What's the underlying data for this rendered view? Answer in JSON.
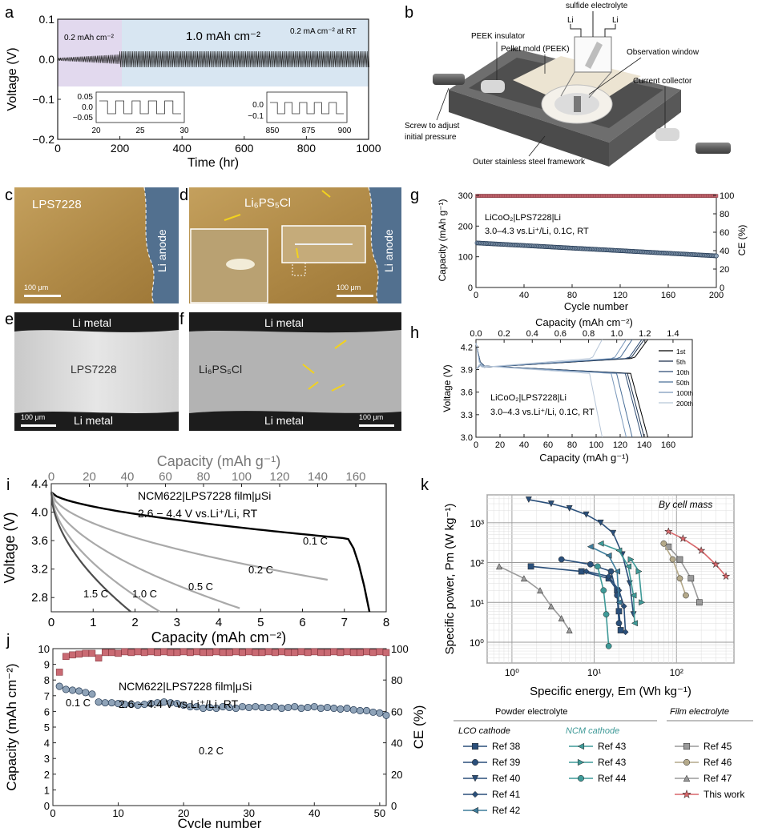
{
  "panel_letters": [
    "a",
    "b",
    "c",
    "d",
    "e",
    "f",
    "g",
    "h",
    "i",
    "j",
    "k"
  ],
  "colors": {
    "axis": "#222222",
    "accent_blue": "#1f4e79",
    "ce_pink": "#c96a73",
    "cap_grey": "#8fa3b8",
    "steel": "#6e6e6e",
    "peek": "#ede5d4"
  },
  "panel_a": {
    "region_labels": [
      "0.2 mAh cm⁻²",
      "1.0 mAh cm⁻²",
      "0.2 mA cm⁻² at RT"
    ],
    "inset1": {
      "yticks": [
        "0.05",
        "0.0",
        "−0.05"
      ],
      "xticks": [
        "20",
        "25",
        "30"
      ]
    },
    "inset2": {
      "yticks": [
        "0.0",
        "−0.1"
      ],
      "xticks": [
        "850",
        "875",
        "900"
      ]
    }
  },
  "panel_b": {
    "labels": [
      "sulfide electrolyte",
      "Li",
      "Li",
      "PEEK insulator",
      "Pellet mold (PEEK)",
      "Observation window",
      "Current collector",
      "Screw to adjust",
      "initial pressure",
      "Outer stainless steel framework"
    ]
  },
  "micro": {
    "c": {
      "title": "LPS7228",
      "anode": "Li anode",
      "scale": "100 μm"
    },
    "d": {
      "title": "Li₆PS₅Cl",
      "anode": "Li anode",
      "scale": "100 μm"
    },
    "e": {
      "top": "Li metal",
      "mid": "LPS7228",
      "bottom": "Li metal",
      "scale": "100 μm"
    },
    "f": {
      "top": "Li metal",
      "mid": "Li₆PS₅Cl",
      "bottom": "Li metal",
      "scale": "100 μm"
    }
  },
  "chart_data": [
    {
      "id": "a",
      "type": "line",
      "xlabel": "Time (hr)",
      "ylabel": "Voltage (V)",
      "xlim": [
        0,
        1000
      ],
      "ylim": [
        -0.2,
        0.1
      ],
      "xticks": [
        0,
        200,
        400,
        600,
        800,
        1000
      ],
      "yticks": [
        -0.2,
        -0.1,
        0.0,
        0.1
      ],
      "xtick_labels": [
        "0",
        "200",
        "400",
        "600",
        "800",
        "1000"
      ],
      "ytick_labels": [
        "−0.2",
        "−0.1",
        "0.0",
        "0.1"
      ],
      "amplitude_start": 0.012,
      "amplitude_end": 0.02,
      "switch_time": 200
    },
    {
      "id": "g",
      "type": "scatter",
      "xlabel": "Cycle number",
      "ylabel": "Capacity (mAh g⁻¹)",
      "y2label": "CE (%)",
      "annotations": [
        "LiCoO₂|LPS7228|Li",
        "3.0–4.3 vs.Li⁺/Li, 0.1C, RT"
      ],
      "xlim": [
        0,
        200
      ],
      "ylim": [
        0,
        300
      ],
      "y2lim": [
        0,
        100
      ],
      "xticks": [
        0,
        40,
        80,
        120,
        160,
        200
      ],
      "yticks": [
        0,
        100,
        200,
        300
      ],
      "y2ticks": [
        0,
        20,
        40,
        60,
        80,
        100
      ],
      "capacity_start": 145,
      "capacity_end": 103,
      "ce_level": 99.5
    },
    {
      "id": "h",
      "type": "line",
      "xlabel": "Capacity (mAh g⁻¹)",
      "x2label": "Capacity (mAh cm⁻²)",
      "ylabel": "Voltage (V)",
      "annotations": [
        "LiCoO₂|LPS7228|Li",
        "3.0–4.3 vs.Li⁺/Li, 0.1C, RT"
      ],
      "xlim": [
        0,
        180
      ],
      "ylim": [
        3.0,
        4.3
      ],
      "xticks": [
        0,
        20,
        40,
        60,
        80,
        100,
        120,
        140,
        160
      ],
      "yticks": [
        3.0,
        3.3,
        3.6,
        3.9,
        4.2
      ],
      "x2ticks": [
        "0.0",
        "0.2",
        "0.4",
        "0.6",
        "0.8",
        "1.0",
        "1.2",
        "1.4"
      ],
      "series": [
        {
          "name": "1st",
          "capacity": 143,
          "color": "#000000"
        },
        {
          "name": "5th",
          "capacity": 140,
          "color": "#1b2f4a"
        },
        {
          "name": "10th",
          "capacity": 138,
          "color": "#2c4b73"
        },
        {
          "name": "50th",
          "capacity": 130,
          "color": "#4a6f99"
        },
        {
          "name": "100th",
          "capacity": 125,
          "color": "#7a98bb"
        },
        {
          "name": "200th",
          "capacity": 105,
          "color": "#b7c6d8"
        }
      ]
    },
    {
      "id": "i",
      "type": "line",
      "xlabel": "Capacity (mAh cm⁻²)",
      "x2label": "Capacity (mAh g⁻¹)",
      "ylabel": "Voltage (V)",
      "annotations": [
        "NCM622|LPS7228 film|μSi",
        "2.6 − 4.4 V vs.Li⁺/Li, RT"
      ],
      "xlim": [
        0,
        8
      ],
      "ylim": [
        2.6,
        4.4
      ],
      "xticks": [
        0,
        1,
        2,
        3,
        4,
        5,
        6,
        7,
        8
      ],
      "yticks": [
        2.8,
        3.2,
        3.6,
        4.0,
        4.4
      ],
      "x2ticks": [
        0,
        20,
        40,
        60,
        80,
        100,
        120,
        140,
        160
      ],
      "series": [
        {
          "name": "0.1 C",
          "capacity": 7.6,
          "end_v": 3.55,
          "color": "#000000"
        },
        {
          "name": "0.2 C",
          "capacity": 6.6,
          "end_v": 3.05,
          "color": "#a9a9a9"
        },
        {
          "name": "0.5 C",
          "capacity": 4.5,
          "end_v": 2.65,
          "color": "#a9a9a9"
        },
        {
          "name": "1.0 C",
          "capacity": 2.6,
          "end_v": 2.6,
          "color": "#a9a9a9"
        },
        {
          "name": "1.5 C",
          "capacity": 1.9,
          "end_v": 2.6,
          "color": "#4d4d4d"
        }
      ]
    },
    {
      "id": "j",
      "type": "scatter",
      "xlabel": "Cycle number",
      "ylabel": "Capacity (mAh cm⁻²)",
      "y2label": "CE (%)",
      "annotations": [
        "NCM622|LPS7228 film|μSi",
        "2.6 − 4.4 V vs.Li⁺/Li, RT",
        "0.1 C",
        "0.2 C"
      ],
      "xlim": [
        0,
        51
      ],
      "ylim": [
        0,
        10
      ],
      "y2lim": [
        0,
        100
      ],
      "xticks": [
        0,
        10,
        20,
        30,
        40,
        50
      ],
      "yticks": [
        0,
        1,
        2,
        3,
        4,
        5,
        6,
        7,
        8,
        9,
        10
      ],
      "y2ticks": [
        0,
        20,
        40,
        60,
        80,
        100
      ],
      "capacity": [
        7.6,
        7.4,
        7.35,
        7.3,
        7.2,
        7.1,
        6.6,
        6.55,
        6.55,
        6.5,
        6.45,
        6.45,
        6.4,
        6.45,
        6.5,
        6.55,
        6.6,
        6.55,
        6.5,
        6.4,
        6.3,
        6.3,
        6.2,
        6.25,
        6.2,
        6.3,
        6.25,
        6.2,
        6.3,
        6.25,
        6.3,
        6.25,
        6.25,
        6.3,
        6.2,
        6.25,
        6.3,
        6.2,
        6.25,
        6.3,
        6.2,
        6.25,
        6.2,
        6.15,
        6.2,
        6.1,
        6.05,
        6.05,
        5.95,
        5.9,
        5.75
      ],
      "ce": [
        85,
        95,
        96,
        96.5,
        97,
        97,
        94,
        97.5,
        97.5,
        97,
        98,
        97.5,
        98,
        97.5,
        98,
        97.5,
        98,
        97.5,
        97.5,
        98,
        97.5,
        98,
        97.5,
        97.5,
        98,
        97.5,
        97.5,
        98,
        97.5,
        98,
        97.5,
        97.5,
        98,
        97.5,
        98,
        97.5,
        97.5,
        98,
        97.5,
        98,
        97.5,
        97.5,
        98,
        97.5,
        98,
        97.5,
        97.5,
        98,
        97.5,
        98,
        97.5
      ]
    },
    {
      "id": "k",
      "type": "scatter",
      "xlabel": "Specific energy, Em (Wh kg⁻¹)",
      "ylabel": "Specific power, Pm (W kg⁻¹)",
      "annotations": [
        "By cell mass"
      ],
      "xscale": "log",
      "yscale": "log",
      "xlim": [
        0.5,
        500
      ],
      "ylim": [
        0.3,
        5000
      ],
      "xtick_labels": [
        "10⁰",
        "10¹",
        "10²"
      ],
      "ytick_labels": [
        "10⁰",
        "10¹",
        "10²",
        "10³"
      ],
      "legend_groups": [
        "Powder electrolyte",
        "Film electrolyte",
        "LCO cathode",
        "NCM cathode"
      ],
      "series": [
        {
          "name": "Ref 38",
          "color": "#2a4f7a",
          "marker": "square",
          "points": [
            [
              1.7,
              80
            ],
            [
              7,
              60
            ],
            [
              15,
              40
            ],
            [
              19,
              20
            ],
            [
              20,
              6
            ],
            [
              21,
              2
            ]
          ]
        },
        {
          "name": "Ref 39",
          "color": "#2a4f7a",
          "marker": "circle",
          "points": [
            [
              4,
              120
            ],
            [
              9,
              90
            ],
            [
              16,
              60
            ],
            [
              19,
              15
            ],
            [
              20,
              3
            ]
          ]
        },
        {
          "name": "Ref 40",
          "color": "#2a4f7a",
          "marker": "triangle-down",
          "points": [
            [
              1.6,
              3800
            ],
            [
              3,
              3000
            ],
            [
              5,
              2300
            ],
            [
              8,
              1600
            ],
            [
              12,
              1000
            ],
            [
              17,
              550
            ],
            [
              22,
              160
            ],
            [
              27,
              30
            ],
            [
              30,
              5
            ]
          ]
        },
        {
          "name": "Ref 41",
          "color": "#2a4f7a",
          "marker": "diamond",
          "points": [
            [
              8,
              60
            ],
            [
              15,
              45
            ],
            [
              20,
              20
            ],
            [
              23,
              8
            ],
            [
              24,
              1.8
            ]
          ]
        },
        {
          "name": "Ref 42",
          "color": "#3e7d9c",
          "marker": "triangle-left",
          "points": [
            [
              9,
              250
            ],
            [
              15,
              150
            ],
            [
              19,
              60
            ],
            [
              20,
              10
            ]
          ]
        },
        {
          "name": "Ref 43",
          "color": "#3f9a98",
          "marker": "triangle-left",
          "points": [
            [
              12,
              300
            ],
            [
              20,
              200
            ],
            [
              26,
              80
            ],
            [
              30,
              15
            ],
            [
              31,
              3
            ]
          ]
        },
        {
          "name": "Ref 43",
          "color": "#3f9a98",
          "marker": "triangle-right",
          "points": [
            [
              28,
              120
            ],
            [
              35,
              60
            ],
            [
              38,
              10
            ]
          ]
        },
        {
          "name": "Ref 44",
          "color": "#3f9a98",
          "marker": "circle",
          "points": [
            [
              11,
              80
            ],
            [
              13,
              20
            ],
            [
              14,
              5
            ],
            [
              15,
              0.8
            ]
          ]
        },
        {
          "name": "Ref 45",
          "color": "#9a9a9a",
          "marker": "square",
          "points": [
            [
              80,
              250
            ],
            [
              110,
              120
            ],
            [
              150,
              40
            ],
            [
              190,
              10
            ]
          ]
        },
        {
          "name": "Ref 46",
          "color": "#b4a98a",
          "marker": "circle",
          "points": [
            [
              70,
              300
            ],
            [
              90,
              120
            ],
            [
              110,
              40
            ],
            [
              130,
              15
            ]
          ]
        },
        {
          "name": "Ref 47",
          "color": "#9a9a9a",
          "marker": "triangle-up",
          "points": [
            [
              0.7,
              80
            ],
            [
              1.4,
              40
            ],
            [
              2.2,
              20
            ],
            [
              3,
              8
            ],
            [
              4,
              4
            ],
            [
              5,
              2
            ]
          ]
        },
        {
          "name": "This work",
          "color": "#d8666a",
          "marker": "star",
          "points": [
            [
              80,
              600
            ],
            [
              120,
              400
            ],
            [
              200,
              200
            ],
            [
              300,
              90
            ],
            [
              400,
              45
            ]
          ]
        }
      ]
    }
  ]
}
